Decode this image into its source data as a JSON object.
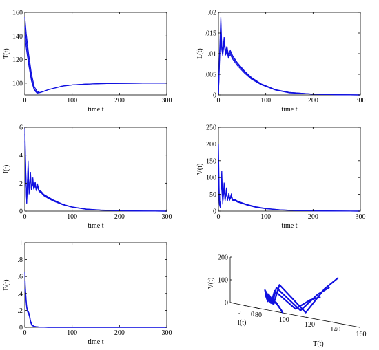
{
  "chart_data": [
    {
      "type": "line",
      "id": "T",
      "xlabel": "time t",
      "ylabel": "T(t)",
      "xlim": [
        0,
        300
      ],
      "ylim": [
        90,
        160
      ],
      "xticks": [
        0,
        100,
        200,
        300
      ],
      "yticks": [
        100,
        120,
        140,
        160
      ],
      "series": [
        {
          "x": [
            0,
            3,
            8,
            14,
            20,
            26,
            32,
            40,
            50,
            65,
            80,
            100,
            130,
            160,
            200,
            250,
            300
          ],
          "y": [
            156,
            142,
            125,
            108,
            97,
            93,
            92,
            93,
            94.5,
            96,
            97.5,
            98.5,
            99.2,
            99.6,
            99.8,
            100,
            100
          ]
        },
        {
          "x": [
            0,
            3,
            8,
            14,
            20,
            26,
            32,
            40,
            50,
            65,
            80,
            100,
            130,
            160,
            200,
            250,
            300
          ],
          "y": [
            148,
            136,
            120,
            104,
            95,
            92,
            92,
            93,
            94.5,
            96,
            97.5,
            98.5,
            99.2,
            99.6,
            99.8,
            100,
            100
          ]
        },
        {
          "x": [
            0,
            3,
            8,
            14,
            20,
            26,
            32,
            40,
            50,
            65,
            80,
            100,
            130,
            160,
            200,
            250,
            300
          ],
          "y": [
            140,
            130,
            116,
            102,
            94,
            91.5,
            92,
            93,
            94.5,
            96,
            97.5,
            98.5,
            99.2,
            99.6,
            99.8,
            100,
            100
          ]
        }
      ]
    },
    {
      "type": "line",
      "id": "L",
      "xlabel": "time t",
      "ylabel": "L(t)",
      "xlim": [
        0,
        300
      ],
      "ylim": [
        0,
        0.02
      ],
      "xticks": [
        0,
        100,
        200,
        300
      ],
      "yticks": [
        0,
        0.005,
        0.01,
        0.015,
        0.02
      ],
      "series": [
        {
          "x": [
            0,
            2,
            5,
            7,
            9,
            12,
            15,
            18,
            21,
            25,
            30,
            40,
            55,
            70,
            90,
            120,
            150,
            200,
            250,
            300
          ],
          "y": [
            0,
            0.009,
            0.0188,
            0.012,
            0.0105,
            0.014,
            0.0105,
            0.0118,
            0.0098,
            0.0108,
            0.0095,
            0.0078,
            0.0058,
            0.0042,
            0.0027,
            0.0013,
            0.0006,
            0.0002,
            5e-05,
            0
          ]
        },
        {
          "x": [
            0,
            2,
            5,
            7,
            9,
            12,
            15,
            18,
            21,
            25,
            30,
            40,
            55,
            70,
            90,
            120,
            150,
            200,
            250,
            300
          ],
          "y": [
            0,
            0.008,
            0.0175,
            0.0115,
            0.01,
            0.0132,
            0.01,
            0.0112,
            0.0094,
            0.0103,
            0.0091,
            0.0075,
            0.0056,
            0.004,
            0.0026,
            0.0012,
            0.0006,
            0.0002,
            5e-05,
            0
          ]
        },
        {
          "x": [
            0,
            2,
            5,
            7,
            9,
            12,
            15,
            18,
            21,
            25,
            30,
            40,
            55,
            70,
            90,
            120,
            150,
            200,
            250,
            300
          ],
          "y": [
            0,
            0.007,
            0.016,
            0.011,
            0.0095,
            0.0125,
            0.0096,
            0.0106,
            0.009,
            0.0098,
            0.0087,
            0.0071,
            0.0053,
            0.0038,
            0.0025,
            0.0012,
            0.0005,
            0.0002,
            5e-05,
            0
          ]
        }
      ]
    },
    {
      "type": "line",
      "id": "I",
      "xlabel": "time t",
      "ylabel": "I(t)",
      "xlim": [
        0,
        300
      ],
      "ylim": [
        0,
        6
      ],
      "xticks": [
        0,
        100,
        200,
        300
      ],
      "yticks": [
        0,
        2,
        4,
        6
      ],
      "series": [
        {
          "x": [
            0,
            2,
            4,
            7,
            9,
            12,
            14,
            17,
            19,
            22,
            24,
            27,
            30,
            35,
            40,
            50,
            60,
            80,
            100,
            130,
            160,
            200,
            250,
            300
          ],
          "y": [
            6,
            3,
            0.5,
            3.6,
            1.2,
            2.8,
            1.5,
            2.4,
            1.6,
            2.1,
            1.6,
            1.9,
            1.5,
            1.4,
            1.2,
            1.0,
            0.8,
            0.5,
            0.3,
            0.15,
            0.08,
            0.03,
            0.01,
            0
          ]
        },
        {
          "x": [
            0,
            2,
            4,
            7,
            9,
            12,
            14,
            17,
            19,
            22,
            24,
            27,
            30,
            35,
            40,
            50,
            60,
            80,
            100,
            130,
            160,
            200,
            250,
            300
          ],
          "y": [
            5.5,
            2.8,
            0.6,
            3.3,
            1.3,
            2.6,
            1.5,
            2.2,
            1.6,
            1.95,
            1.55,
            1.8,
            1.45,
            1.35,
            1.15,
            0.95,
            0.75,
            0.48,
            0.29,
            0.14,
            0.07,
            0.03,
            0.01,
            0
          ]
        },
        {
          "x": [
            0,
            2,
            4,
            7,
            9,
            12,
            14,
            17,
            19,
            22,
            24,
            27,
            30,
            35,
            40,
            50,
            60,
            80,
            100,
            130,
            160,
            200,
            250,
            300
          ],
          "y": [
            5,
            2.6,
            0.7,
            3.0,
            1.4,
            2.4,
            1.5,
            2.05,
            1.55,
            1.85,
            1.5,
            1.7,
            1.4,
            1.3,
            1.1,
            0.9,
            0.72,
            0.46,
            0.28,
            0.13,
            0.07,
            0.03,
            0.01,
            0
          ]
        }
      ]
    },
    {
      "type": "line",
      "id": "V",
      "xlabel": "time t",
      "ylabel": "V(t)",
      "xlim": [
        0,
        300
      ],
      "ylim": [
        0,
        250
      ],
      "xticks": [
        0,
        100,
        200,
        300
      ],
      "yticks": [
        0,
        50,
        100,
        150,
        200,
        250
      ],
      "series": [
        {
          "x": [
            0,
            2,
            4,
            7,
            9,
            12,
            14,
            17,
            19,
            22,
            24,
            27,
            30,
            35,
            40,
            50,
            60,
            80,
            100,
            130,
            160,
            200,
            250,
            300
          ],
          "y": [
            200,
            20,
            10,
            120,
            20,
            85,
            30,
            70,
            30,
            55,
            35,
            50,
            35,
            35,
            30,
            25,
            20,
            13,
            8,
            4,
            2,
            1,
            0.3,
            0
          ]
        },
        {
          "x": [
            0,
            2,
            4,
            7,
            9,
            12,
            14,
            17,
            19,
            22,
            24,
            27,
            30,
            35,
            40,
            50,
            60,
            80,
            100,
            130,
            160,
            200,
            250,
            300
          ],
          "y": [
            150,
            25,
            15,
            105,
            25,
            75,
            32,
            62,
            32,
            50,
            34,
            45,
            33,
            33,
            28,
            24,
            19,
            12,
            7.5,
            4,
            2,
            1,
            0.3,
            0
          ]
        },
        {
          "x": [
            0,
            2,
            4,
            7,
            9,
            12,
            14,
            17,
            19,
            22,
            24,
            27,
            30,
            35,
            40,
            50,
            60,
            80,
            100,
            130,
            160,
            200,
            250,
            300
          ],
          "y": [
            100,
            30,
            20,
            90,
            28,
            65,
            33,
            55,
            33,
            45,
            34,
            42,
            32,
            31,
            27,
            23,
            18,
            11,
            7,
            3.5,
            2,
            1,
            0.3,
            0
          ]
        }
      ]
    },
    {
      "type": "line",
      "id": "B",
      "xlabel": "time t",
      "ylabel": "B(t)",
      "xlim": [
        0,
        300
      ],
      "ylim": [
        0,
        1
      ],
      "xticks": [
        0,
        100,
        200,
        300
      ],
      "yticks": [
        0,
        0.2,
        0.4,
        0.6,
        0.8,
        1
      ],
      "series": [
        {
          "x": [
            0,
            1,
            2,
            3,
            4,
            5,
            6,
            8,
            10,
            12,
            15,
            20,
            30,
            50,
            100,
            200,
            300
          ],
          "y": [
            0.65,
            0.5,
            0.4,
            0.32,
            0.25,
            0.22,
            0.2,
            0.18,
            0.15,
            0.08,
            0.03,
            0.01,
            0.003,
            0,
            0,
            0,
            0
          ]
        },
        {
          "x": [
            0,
            1,
            2,
            3,
            4,
            5,
            6,
            8,
            10,
            12,
            15,
            20,
            30,
            50,
            100,
            200,
            300
          ],
          "y": [
            0.55,
            0.45,
            0.37,
            0.3,
            0.24,
            0.21,
            0.19,
            0.17,
            0.13,
            0.07,
            0.03,
            0.01,
            0.003,
            0,
            0,
            0,
            0
          ]
        },
        {
          "x": [
            0,
            1,
            2,
            3,
            4,
            5,
            6,
            8,
            10,
            12,
            15,
            20,
            30,
            50,
            100,
            200,
            300
          ],
          "y": [
            0.45,
            0.4,
            0.34,
            0.28,
            0.23,
            0.2,
            0.18,
            0.16,
            0.12,
            0.06,
            0.02,
            0.01,
            0.002,
            0,
            0,
            0,
            0
          ]
        }
      ]
    },
    {
      "type": "line3d",
      "id": "phase",
      "xlabel": "T(t)",
      "ylabel": "I(t)",
      "zlabel": "V(t)",
      "xlim": [
        80,
        160
      ],
      "ylim": [
        0,
        10
      ],
      "zlim": [
        0,
        200
      ],
      "xticks": [
        80,
        100,
        120,
        140,
        160
      ],
      "yticks": [
        0,
        5
      ],
      "zticks": [
        0,
        100,
        200
      ],
      "series": [
        {
          "T": [
            156,
            140,
            120,
            105,
            96,
            92,
            92,
            94,
            96,
            98,
            99,
            100,
            100
          ],
          "I": [
            6,
            3.5,
            1,
            3.6,
            1.5,
            2.8,
            1.8,
            2.4,
            1.8,
            1.5,
            1.0,
            0.4,
            0
          ],
          "V": [
            200,
            140,
            20,
            120,
            30,
            85,
            40,
            70,
            45,
            40,
            25,
            8,
            0
          ]
        },
        {
          "T": [
            148,
            134,
            116,
            102,
            95,
            92,
            92,
            94,
            96,
            98,
            99,
            100,
            100
          ],
          "I": [
            5.5,
            3.2,
            1,
            3.3,
            1.5,
            2.6,
            1.8,
            2.2,
            1.7,
            1.45,
            0.95,
            0.38,
            0
          ],
          "V": [
            150,
            110,
            25,
            105,
            32,
            75,
            40,
            62,
            43,
            38,
            24,
            7.5,
            0
          ]
        },
        {
          "T": [
            140,
            128,
            112,
            100,
            94,
            91.5,
            92,
            94,
            96,
            98,
            99,
            100,
            100
          ],
          "I": [
            5,
            3,
            1,
            3.0,
            1.5,
            2.4,
            1.7,
            2.05,
            1.65,
            1.4,
            0.9,
            0.36,
            0
          ],
          "V": [
            100,
            80,
            28,
            90,
            33,
            65,
            38,
            55,
            40,
            36,
            23,
            7,
            0
          ]
        }
      ]
    }
  ]
}
